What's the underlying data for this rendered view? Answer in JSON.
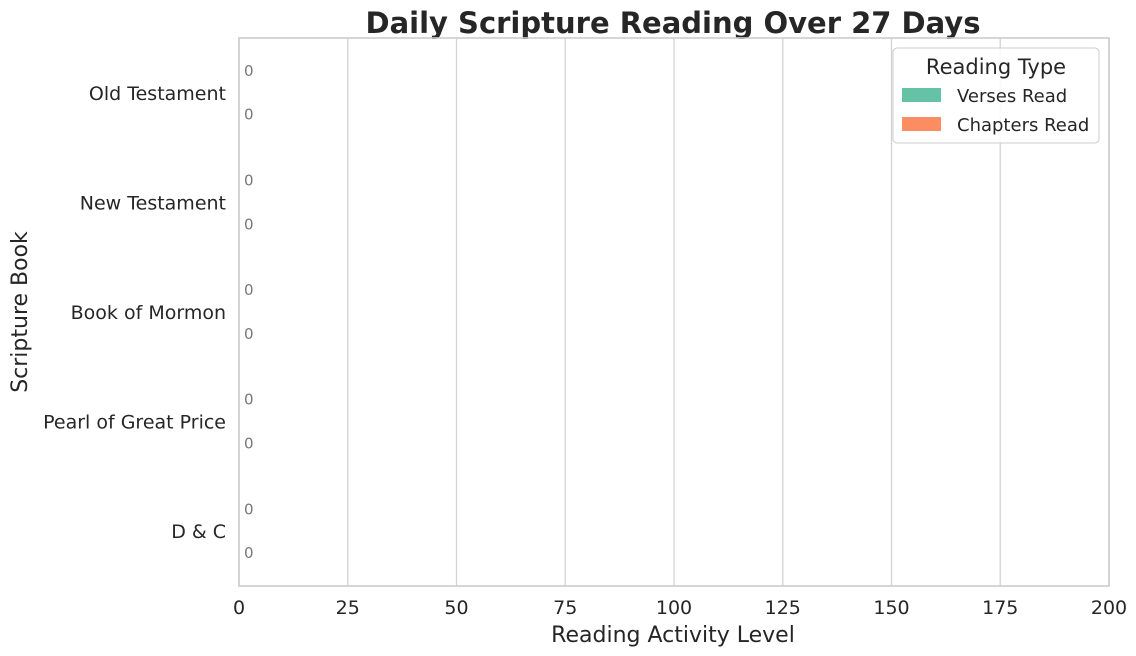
{
  "chart_data": {
    "type": "bar",
    "orientation": "horizontal",
    "title": "Daily Scripture Reading Over 27 Days",
    "xlabel": "Reading Activity Level",
    "ylabel": "Scripture Book",
    "xlim": [
      0,
      200
    ],
    "xticks": [
      0,
      25,
      50,
      75,
      100,
      125,
      150,
      175,
      200
    ],
    "grid": "vertical",
    "legend_title": "Reading Type",
    "legend_position": "top-right",
    "categories": [
      "Old Testament",
      "New Testament",
      "Book of Mormon",
      "Pearl of Great Price",
      "D & C"
    ],
    "series": [
      {
        "name": "Verses Read",
        "color": "#66c2a5",
        "values": [
          0,
          0,
          0,
          0,
          0
        ]
      },
      {
        "name": "Chapters Read",
        "color": "#fc8d62",
        "values": [
          0,
          0,
          0,
          0,
          0
        ]
      }
    ]
  }
}
